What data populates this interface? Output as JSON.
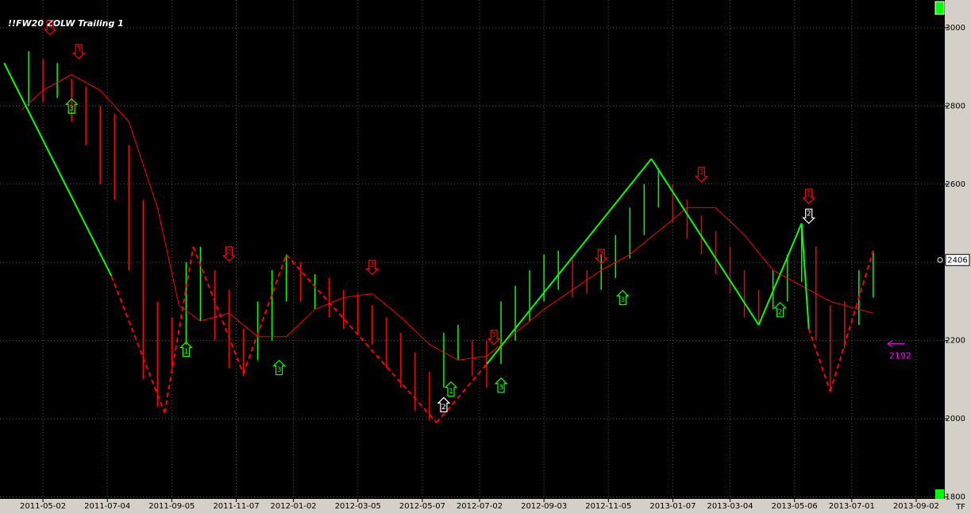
{
  "chart_data": {
    "type": "ohlc",
    "title": "!!FW20 ZOLW Trailing 1",
    "xlim": [
      "2011-03-21",
      "2013-09-30"
    ],
    "xticks": [
      "2011-05-02",
      "2011-07-04",
      "2011-09-05",
      "2011-11-07",
      "2012-01-02",
      "2012-03-05",
      "2012-05-07",
      "2012-07-02",
      "2012-09-03",
      "2012-11-05",
      "2013-01-07",
      "2013-03-04",
      "2013-05-06",
      "2013-07-01",
      "2013-09-02"
    ],
    "ylim": [
      1795,
      3071
    ],
    "yticks": [
      1800,
      2000,
      2200,
      2400,
      2600,
      2800,
      3000
    ],
    "grid": true,
    "bars": {
      "x": [
        "2011-04-18",
        "2011-05-02",
        "2011-05-16",
        "2011-05-30",
        "2011-06-13",
        "2011-06-27",
        "2011-07-11",
        "2011-07-25",
        "2011-08-08",
        "2011-08-22",
        "2011-09-05",
        "2011-09-19",
        "2011-10-03",
        "2011-10-17",
        "2011-10-31",
        "2011-11-14",
        "2011-11-28",
        "2011-12-12",
        "2011-12-26",
        "2012-01-09",
        "2012-01-23",
        "2012-02-06",
        "2012-02-20",
        "2012-03-05",
        "2012-03-19",
        "2012-04-02",
        "2012-04-16",
        "2012-04-30",
        "2012-05-14",
        "2012-05-28",
        "2012-06-11",
        "2012-06-25",
        "2012-07-09",
        "2012-07-23",
        "2012-08-06",
        "2012-08-20",
        "2012-09-03",
        "2012-09-17",
        "2012-10-01",
        "2012-10-15",
        "2012-10-29",
        "2012-11-12",
        "2012-11-26",
        "2012-12-10",
        "2012-12-24",
        "2013-01-07",
        "2013-01-21",
        "2013-02-04",
        "2013-02-18",
        "2013-03-04",
        "2013-03-18",
        "2013-04-01",
        "2013-04-15",
        "2013-04-29",
        "2013-05-13",
        "2013-05-27",
        "2013-06-10",
        "2013-06-24",
        "2013-07-08",
        "2013-07-22"
      ],
      "high": [
        2940,
        2920,
        2910,
        2870,
        2850,
        2800,
        2780,
        2700,
        2560,
        2300,
        2260,
        2400,
        2440,
        2380,
        2330,
        2230,
        2300,
        2380,
        2420,
        2400,
        2370,
        2360,
        2330,
        2320,
        2290,
        2260,
        2220,
        2170,
        2120,
        2220,
        2240,
        2200,
        2200,
        2300,
        2340,
        2380,
        2420,
        2430,
        2410,
        2380,
        2420,
        2470,
        2540,
        2600,
        2640,
        2600,
        2560,
        2520,
        2480,
        2440,
        2380,
        2330,
        2380,
        2420,
        2500,
        2440,
        2290,
        2300,
        2380,
        2430
      ],
      "low": [
        2800,
        2810,
        2820,
        2760,
        2700,
        2600,
        2560,
        2380,
        2100,
        2030,
        2130,
        2190,
        2250,
        2200,
        2130,
        2110,
        2150,
        2200,
        2300,
        2300,
        2280,
        2260,
        2230,
        2220,
        2190,
        2130,
        2080,
        2020,
        1995,
        2080,
        2150,
        2110,
        2080,
        2140,
        2200,
        2250,
        2300,
        2330,
        2310,
        2320,
        2330,
        2360,
        2410,
        2470,
        2540,
        2500,
        2460,
        2420,
        2370,
        2320,
        2260,
        2240,
        2280,
        2300,
        2350,
        2200,
        2070,
        2180,
        2240,
        2310
      ],
      "colors": [
        "#00ff00",
        "#ff0000",
        "#00ff00",
        "#ff0000",
        "#ff0000",
        "#ff0000",
        "#ff0000",
        "#ff0000",
        "#ff0000",
        "#ff0000",
        "#ff0000",
        "#00ff00",
        "#00ff00",
        "#ff0000",
        "#ff0000",
        "#ff0000",
        "#00ff00",
        "#00ff00",
        "#00ff00",
        "#ff0000",
        "#00ff00",
        "#ff0000",
        "#ff0000",
        "#ff0000",
        "#ff0000",
        "#ff0000",
        "#ff0000",
        "#ff0000",
        "#ff0000",
        "#00ff00",
        "#00ff00",
        "#ff0000",
        "#ff0000",
        "#00ff00",
        "#00ff00",
        "#00ff00",
        "#00ff00",
        "#00ff00",
        "#ff0000",
        "#ff0000",
        "#00ff00",
        "#00ff00",
        "#00ff00",
        "#00ff00",
        "#00ff00",
        "#ff0000",
        "#ff0000",
        "#ff0000",
        "#ff0000",
        "#ff0000",
        "#ff0000",
        "#ff0000",
        "#00ff00",
        "#00ff00",
        "#00ff00",
        "#ff0000",
        "#ff0000",
        "#ff0000",
        "#00ff00",
        "#00ff00"
      ]
    },
    "moving_average": {
      "color": "#ff0000",
      "x": [
        "2011-04-11",
        "2011-05-02",
        "2011-05-30",
        "2011-06-27",
        "2011-07-25",
        "2011-08-22",
        "2011-09-12",
        "2011-10-03",
        "2011-10-31",
        "2011-11-28",
        "2011-12-26",
        "2012-01-23",
        "2012-02-20",
        "2012-03-19",
        "2012-04-16",
        "2012-05-14",
        "2012-06-11",
        "2012-07-09",
        "2012-08-06",
        "2012-09-03",
        "2012-10-01",
        "2012-10-29",
        "2012-11-26",
        "2012-12-24",
        "2013-01-21",
        "2013-02-18",
        "2013-03-18",
        "2013-04-15",
        "2013-05-13",
        "2013-06-10",
        "2013-07-08",
        "2013-07-22"
      ],
      "values": [
        2790,
        2840,
        2880,
        2840,
        2760,
        2540,
        2290,
        2250,
        2270,
        2210,
        2210,
        2280,
        2310,
        2320,
        2260,
        2190,
        2150,
        2160,
        2220,
        2280,
        2330,
        2380,
        2420,
        2480,
        2540,
        2540,
        2470,
        2380,
        2340,
        2300,
        2280,
        2270
      ]
    },
    "zigzag": {
      "x": [
        "2011-03-25",
        "2011-07-08",
        "2011-08-29",
        "2011-09-26",
        "2011-11-14",
        "2011-12-26",
        "2012-05-21",
        "2012-07-09",
        "2012-12-17",
        "2013-04-01",
        "2013-05-13",
        "2013-05-20",
        "2013-06-10",
        "2013-07-22"
      ],
      "values": [
        2910,
        2365,
        2015,
        2440,
        2115,
        2420,
        1990,
        2140,
        2665,
        2240,
        2500,
        2230,
        2070,
        2430
      ],
      "colors": [
        "#00ff00",
        "#ff0000",
        "#ff0000",
        "#ff0000",
        "#ff0000",
        "#ff0000",
        "#ff0000",
        "#00ff00",
        "#00ff00",
        "#00ff00",
        "#00ff00",
        "#ff0000",
        "#ff0000"
      ],
      "dashed": [
        false,
        true,
        true,
        true,
        true,
        true,
        true,
        false,
        false,
        false,
        false,
        true,
        true
      ]
    },
    "annotations": [
      {
        "x": "2011-05-09",
        "y": 3000,
        "label": "1",
        "direction": "down",
        "color": "#ff0000"
      },
      {
        "x": "2011-06-06",
        "y": 2939,
        "label": "3",
        "direction": "down",
        "color": "#ff0000"
      },
      {
        "x": "2011-05-30",
        "y": 2800,
        "label": "3",
        "direction": "up",
        "color": "#00ff00"
      },
      {
        "x": "2011-09-19",
        "y": 2178,
        "label": "1",
        "direction": "up",
        "color": "#00ff00"
      },
      {
        "x": "2011-10-31",
        "y": 2421,
        "label": "2",
        "direction": "down",
        "color": "#ff0000"
      },
      {
        "x": "2011-12-19",
        "y": 2131,
        "label": "3",
        "direction": "up",
        "color": "#00ff00"
      },
      {
        "x": "2012-03-19",
        "y": 2387,
        "label": "3",
        "direction": "down",
        "color": "#ff0000"
      },
      {
        "x": "2012-05-28",
        "y": 2036,
        "label": "2",
        "direction": "up",
        "color": "#ffffff"
      },
      {
        "x": "2012-06-04",
        "y": 2076,
        "label": "1",
        "direction": "up",
        "color": "#00ff00"
      },
      {
        "x": "2012-07-16",
        "y": 2208,
        "label": "3",
        "direction": "down",
        "color": "#ff0000"
      },
      {
        "x": "2012-07-23",
        "y": 2086,
        "label": "3",
        "direction": "up",
        "color": "#00ff00"
      },
      {
        "x": "2012-10-29",
        "y": 2415,
        "label": "2",
        "direction": "down",
        "color": "#ff0000"
      },
      {
        "x": "2012-11-19",
        "y": 2310,
        "label": "3",
        "direction": "up",
        "color": "#00ff00"
      },
      {
        "x": "2013-02-04",
        "y": 2624,
        "label": "3",
        "direction": "down",
        "color": "#ff0000"
      },
      {
        "x": "2013-04-22",
        "y": 2279,
        "label": "2",
        "direction": "up",
        "color": "#00ff00"
      },
      {
        "x": "2013-05-20",
        "y": 2569,
        "label": "1",
        "direction": "down",
        "color": "#ff0000"
      },
      {
        "x": "2013-05-20",
        "y": 2518,
        "label": "2",
        "direction": "down",
        "color": "#ffffff"
      }
    ],
    "price_marker": {
      "x": "2013-08-05",
      "value": 2192,
      "color": "#ff00ff"
    },
    "last_price": 2406,
    "timeframe_label": "TF"
  }
}
